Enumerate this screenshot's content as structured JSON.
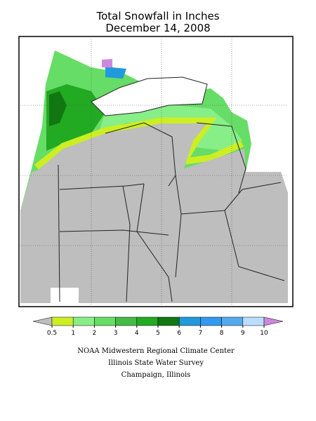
{
  "header": {
    "title": "Total Snowfall in Inches",
    "subtitle": "December 14, 2008"
  },
  "legend": {
    "ticks": [
      0.5,
      1,
      2,
      3,
      4,
      5,
      6,
      7,
      8,
      9,
      10
    ],
    "colors": [
      "#bebebe",
      "#ccee22",
      "#88ee88",
      "#66dd66",
      "#44bb44",
      "#22aa22",
      "#117711",
      "#2299dd",
      "#3399ee",
      "#55aaee",
      "#bbddff",
      "#cc88dd"
    ]
  },
  "credits": [
    "NOAA Midwestern Regional Climate Center",
    "Illinois State Water Survey",
    "Champaign, Illinois"
  ]
}
